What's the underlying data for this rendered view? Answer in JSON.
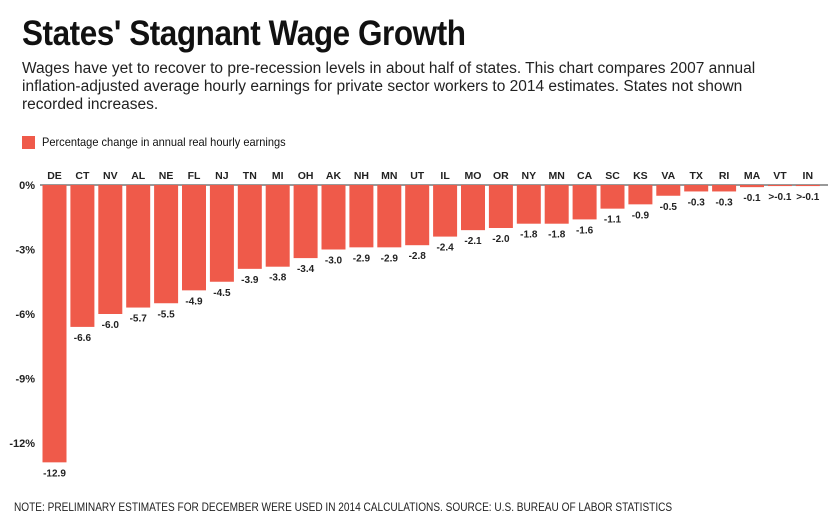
{
  "chart_data": {
    "type": "bar",
    "orientation": "vertical",
    "title": "States' Stagnant Wage Growth",
    "subtitle": "Wages have yet to recover to pre-recession levels in about half of states. This chart compares 2007 annual inflation-adjusted average hourly earnings for private sector workers to 2014 estimates. States not shown recorded increases.",
    "legend": "Percentage change in annual real hourly earnings",
    "note": "NOTE: PRELIMINARY ESTIMATES FOR DECEMBER WERE USED IN 2014 CALCULATIONS. SOURCE: U.S. BUREAU OF LABOR STATISTICS",
    "color": "#ef5a4a",
    "ylim": [
      -13,
      0
    ],
    "y_ticks": [
      {
        "value": 0,
        "label": "0%"
      },
      {
        "value": -3,
        "label": "-3%"
      },
      {
        "value": -6,
        "label": "-6%"
      },
      {
        "value": -9,
        "label": "-9%"
      },
      {
        "value": -12,
        "label": "-12%"
      }
    ],
    "categories": [
      "DE",
      "CT",
      "NV",
      "AL",
      "NE",
      "FL",
      "NJ",
      "TN",
      "MI",
      "OH",
      "AK",
      "NH",
      "MN",
      "UT",
      "IL",
      "MO",
      "OR",
      "NY",
      "MN",
      "CA",
      "SC",
      "KS",
      "VA",
      "TX",
      "RI",
      "MA",
      "VT",
      "IN"
    ],
    "values": [
      -12.9,
      -6.6,
      -6.0,
      -5.7,
      -5.5,
      -4.9,
      -4.5,
      -3.9,
      -3.8,
      -3.4,
      -3.0,
      -2.9,
      -2.9,
      -2.8,
      -2.4,
      -2.1,
      -2.0,
      -1.8,
      -1.8,
      -1.6,
      -1.1,
      -0.9,
      -0.5,
      -0.3,
      -0.3,
      -0.1,
      -0.05,
      -0.05
    ],
    "value_labels": [
      "-12.9",
      "-6.6",
      "-6.0",
      "-5.7",
      "-5.5",
      "-4.9",
      "-4.5",
      "-3.9",
      "-3.8",
      "-3.4",
      "-3.0",
      "-2.9",
      "-2.9",
      "-2.8",
      "-2.4",
      "-2.1",
      "-2.0",
      "-1.8",
      "-1.8",
      "-1.6",
      "-1.1",
      "-0.9",
      "-0.5",
      "-0.3",
      "-0.3",
      "-0.1",
      ">-0.1",
      ">-0.1"
    ]
  }
}
